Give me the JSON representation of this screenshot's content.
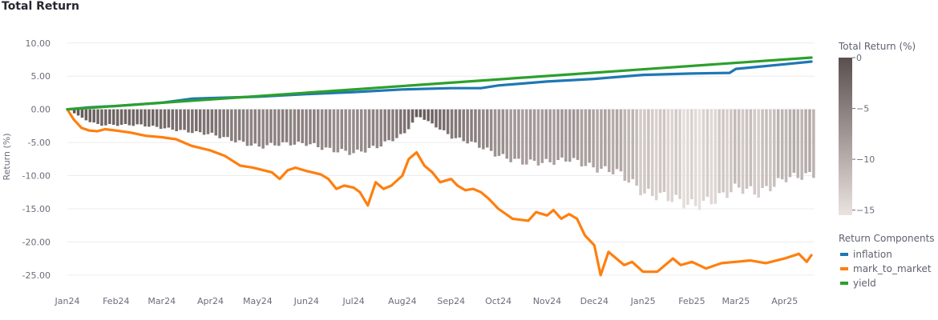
{
  "title": "Total Return",
  "chart_data": {
    "type": "line",
    "title": "Total Return",
    "xlabel": "",
    "ylabel": "Return (%)",
    "ylim": [
      -25.5,
      10.7
    ],
    "yticks": [
      10,
      5,
      0,
      -5,
      -10,
      -15,
      -20,
      -25
    ],
    "ytick_labels": [
      "10.00",
      "5.00",
      "0.00",
      "-5.00",
      "-10.00",
      "-15.00",
      "-20.00",
      "-25.00"
    ],
    "xlim": [
      "2024-01-01",
      "2025-04-20"
    ],
    "xticks": [
      "2024-01-01",
      "2024-02-01",
      "2024-03-01",
      "2024-04-01",
      "2024-05-01",
      "2024-06-01",
      "2024-07-01",
      "2024-08-01",
      "2024-09-01",
      "2024-10-01",
      "2024-11-01",
      "2024-12-01",
      "2025-01-01",
      "2025-02-01",
      "2025-03-01",
      "2025-04-01"
    ],
    "xtick_labels": [
      "Jan24",
      "Feb24",
      "Mar24",
      "Apr24",
      "May24",
      "Jun24",
      "Jul24",
      "Aug24",
      "Sep24",
      "Oct24",
      "Nov24",
      "Dec24",
      "Jan25",
      "Feb25",
      "Mar25",
      "Apr25"
    ],
    "grid": true,
    "series": [
      {
        "name": "inflation",
        "color": "#1f77b4",
        "x": [
          "2024-01-01",
          "2024-01-15",
          "2024-02-01",
          "2024-03-01",
          "2024-03-20",
          "2024-04-01",
          "2024-05-01",
          "2024-06-01",
          "2024-07-01",
          "2024-08-01",
          "2024-09-01",
          "2024-09-20",
          "2024-10-01",
          "2024-11-01",
          "2024-12-01",
          "2025-01-01",
          "2025-02-01",
          "2025-02-25",
          "2025-03-01",
          "2025-04-01",
          "2025-04-18"
        ],
        "values": [
          0,
          0.3,
          0.5,
          1.0,
          1.6,
          1.7,
          1.9,
          2.3,
          2.6,
          3.0,
          3.2,
          3.2,
          3.6,
          4.2,
          4.6,
          5.2,
          5.4,
          5.5,
          6.1,
          6.8,
          7.2
        ]
      },
      {
        "name": "mark_to_market",
        "color": "#ff7f0e",
        "x": [
          "2024-01-01",
          "2024-01-05",
          "2024-01-10",
          "2024-01-15",
          "2024-01-20",
          "2024-01-25",
          "2024-02-01",
          "2024-02-10",
          "2024-02-20",
          "2024-03-01",
          "2024-03-10",
          "2024-03-15",
          "2024-03-20",
          "2024-03-25",
          "2024-04-01",
          "2024-04-10",
          "2024-04-20",
          "2024-04-28",
          "2024-05-05",
          "2024-05-10",
          "2024-05-15",
          "2024-05-20",
          "2024-05-25",
          "2024-06-01",
          "2024-06-10",
          "2024-06-15",
          "2024-06-20",
          "2024-06-25",
          "2024-07-01",
          "2024-07-05",
          "2024-07-10",
          "2024-07-15",
          "2024-07-20",
          "2024-07-25",
          "2024-08-01",
          "2024-08-05",
          "2024-08-10",
          "2024-08-15",
          "2024-08-20",
          "2024-08-25",
          "2024-09-01",
          "2024-09-05",
          "2024-09-10",
          "2024-09-15",
          "2024-09-20",
          "2024-09-25",
          "2024-10-01",
          "2024-10-10",
          "2024-10-20",
          "2024-10-25",
          "2024-11-01",
          "2024-11-05",
          "2024-11-10",
          "2024-11-15",
          "2024-11-20",
          "2024-11-25",
          "2024-12-01",
          "2024-12-05",
          "2024-12-10",
          "2024-12-15",
          "2024-12-20",
          "2024-12-25",
          "2025-01-01",
          "2025-01-10",
          "2025-01-20",
          "2025-01-25",
          "2025-02-01",
          "2025-02-10",
          "2025-02-20",
          "2025-03-01",
          "2025-03-10",
          "2025-03-20",
          "2025-04-01",
          "2025-04-10",
          "2025-04-15",
          "2025-04-18"
        ],
        "values": [
          0,
          -1.5,
          -2.8,
          -3.2,
          -3.3,
          -3.0,
          -3.2,
          -3.5,
          -4.0,
          -4.2,
          -4.5,
          -5.0,
          -5.5,
          -5.8,
          -6.2,
          -7.0,
          -8.5,
          -8.8,
          -9.2,
          -9.5,
          -10.5,
          -9.2,
          -8.8,
          -9.3,
          -9.8,
          -10.5,
          -12.0,
          -11.5,
          -11.8,
          -12.5,
          -14.5,
          -11.0,
          -12.0,
          -11.5,
          -10.0,
          -7.5,
          -6.5,
          -8.5,
          -9.5,
          -11.0,
          -10.5,
          -11.5,
          -12.2,
          -12.0,
          -12.5,
          -13.5,
          -15.0,
          -16.5,
          -16.8,
          -15.5,
          -16.0,
          -15.2,
          -16.5,
          -15.8,
          -16.5,
          -19.0,
          -20.5,
          -25.0,
          -21.5,
          -22.5,
          -23.5,
          -23.0,
          -24.5,
          -24.5,
          -22.5,
          -23.5,
          -23.0,
          -24.0,
          -23.2,
          -23.0,
          -22.8,
          -23.2,
          -22.5,
          -21.8,
          -23.0,
          -22.0
        ]
      },
      {
        "name": "yield",
        "color": "#2ca02c",
        "x": [
          "2024-01-01",
          "2025-04-18"
        ],
        "values": [
          0,
          7.8
        ]
      }
    ],
    "bars": {
      "name": "Total Return (%)",
      "x": [
        "2024-01-01",
        "2024-01-10",
        "2024-01-20",
        "2024-02-01",
        "2024-02-15",
        "2024-03-01",
        "2024-03-15",
        "2024-04-01",
        "2024-04-15",
        "2024-05-01",
        "2024-05-15",
        "2024-06-01",
        "2024-06-15",
        "2024-07-01",
        "2024-07-15",
        "2024-08-01",
        "2024-08-10",
        "2024-08-20",
        "2024-09-01",
        "2024-09-15",
        "2024-10-01",
        "2024-10-15",
        "2024-11-01",
        "2024-11-15",
        "2024-12-01",
        "2024-12-15",
        "2024-12-25",
        "2025-01-01",
        "2025-01-15",
        "2025-02-01",
        "2025-02-15",
        "2025-03-01",
        "2025-03-15",
        "2025-04-01",
        "2025-04-18"
      ],
      "values": [
        0,
        -1.5,
        -2.5,
        -2.5,
        -2.5,
        -3.0,
        -3.5,
        -4.0,
        -5.0,
        -6.0,
        -5.5,
        -5.5,
        -6.5,
        -7.0,
        -6.0,
        -4.0,
        -1.0,
        -2.5,
        -4.5,
        -5.5,
        -7.5,
        -8.5,
        -8.5,
        -8.0,
        -9.5,
        -10.0,
        -12.0,
        -13.5,
        -14.0,
        -15.5,
        -14.5,
        -12.5,
        -13.5,
        -11.0,
        -10.5
      ]
    },
    "colorbar": {
      "title": "Total Return (%)",
      "min": -15.5,
      "max": 0,
      "ticks": [
        0,
        -5,
        -10,
        -15
      ],
      "tick_labels": [
        "0",
        "−5",
        "−10",
        "−15"
      ],
      "color_high": "#5a4f4f",
      "color_low": "#ebe3e0"
    },
    "legend": {
      "title": "Return Components",
      "placement": "right",
      "items": [
        "inflation",
        "mark_to_market",
        "yield"
      ]
    }
  }
}
